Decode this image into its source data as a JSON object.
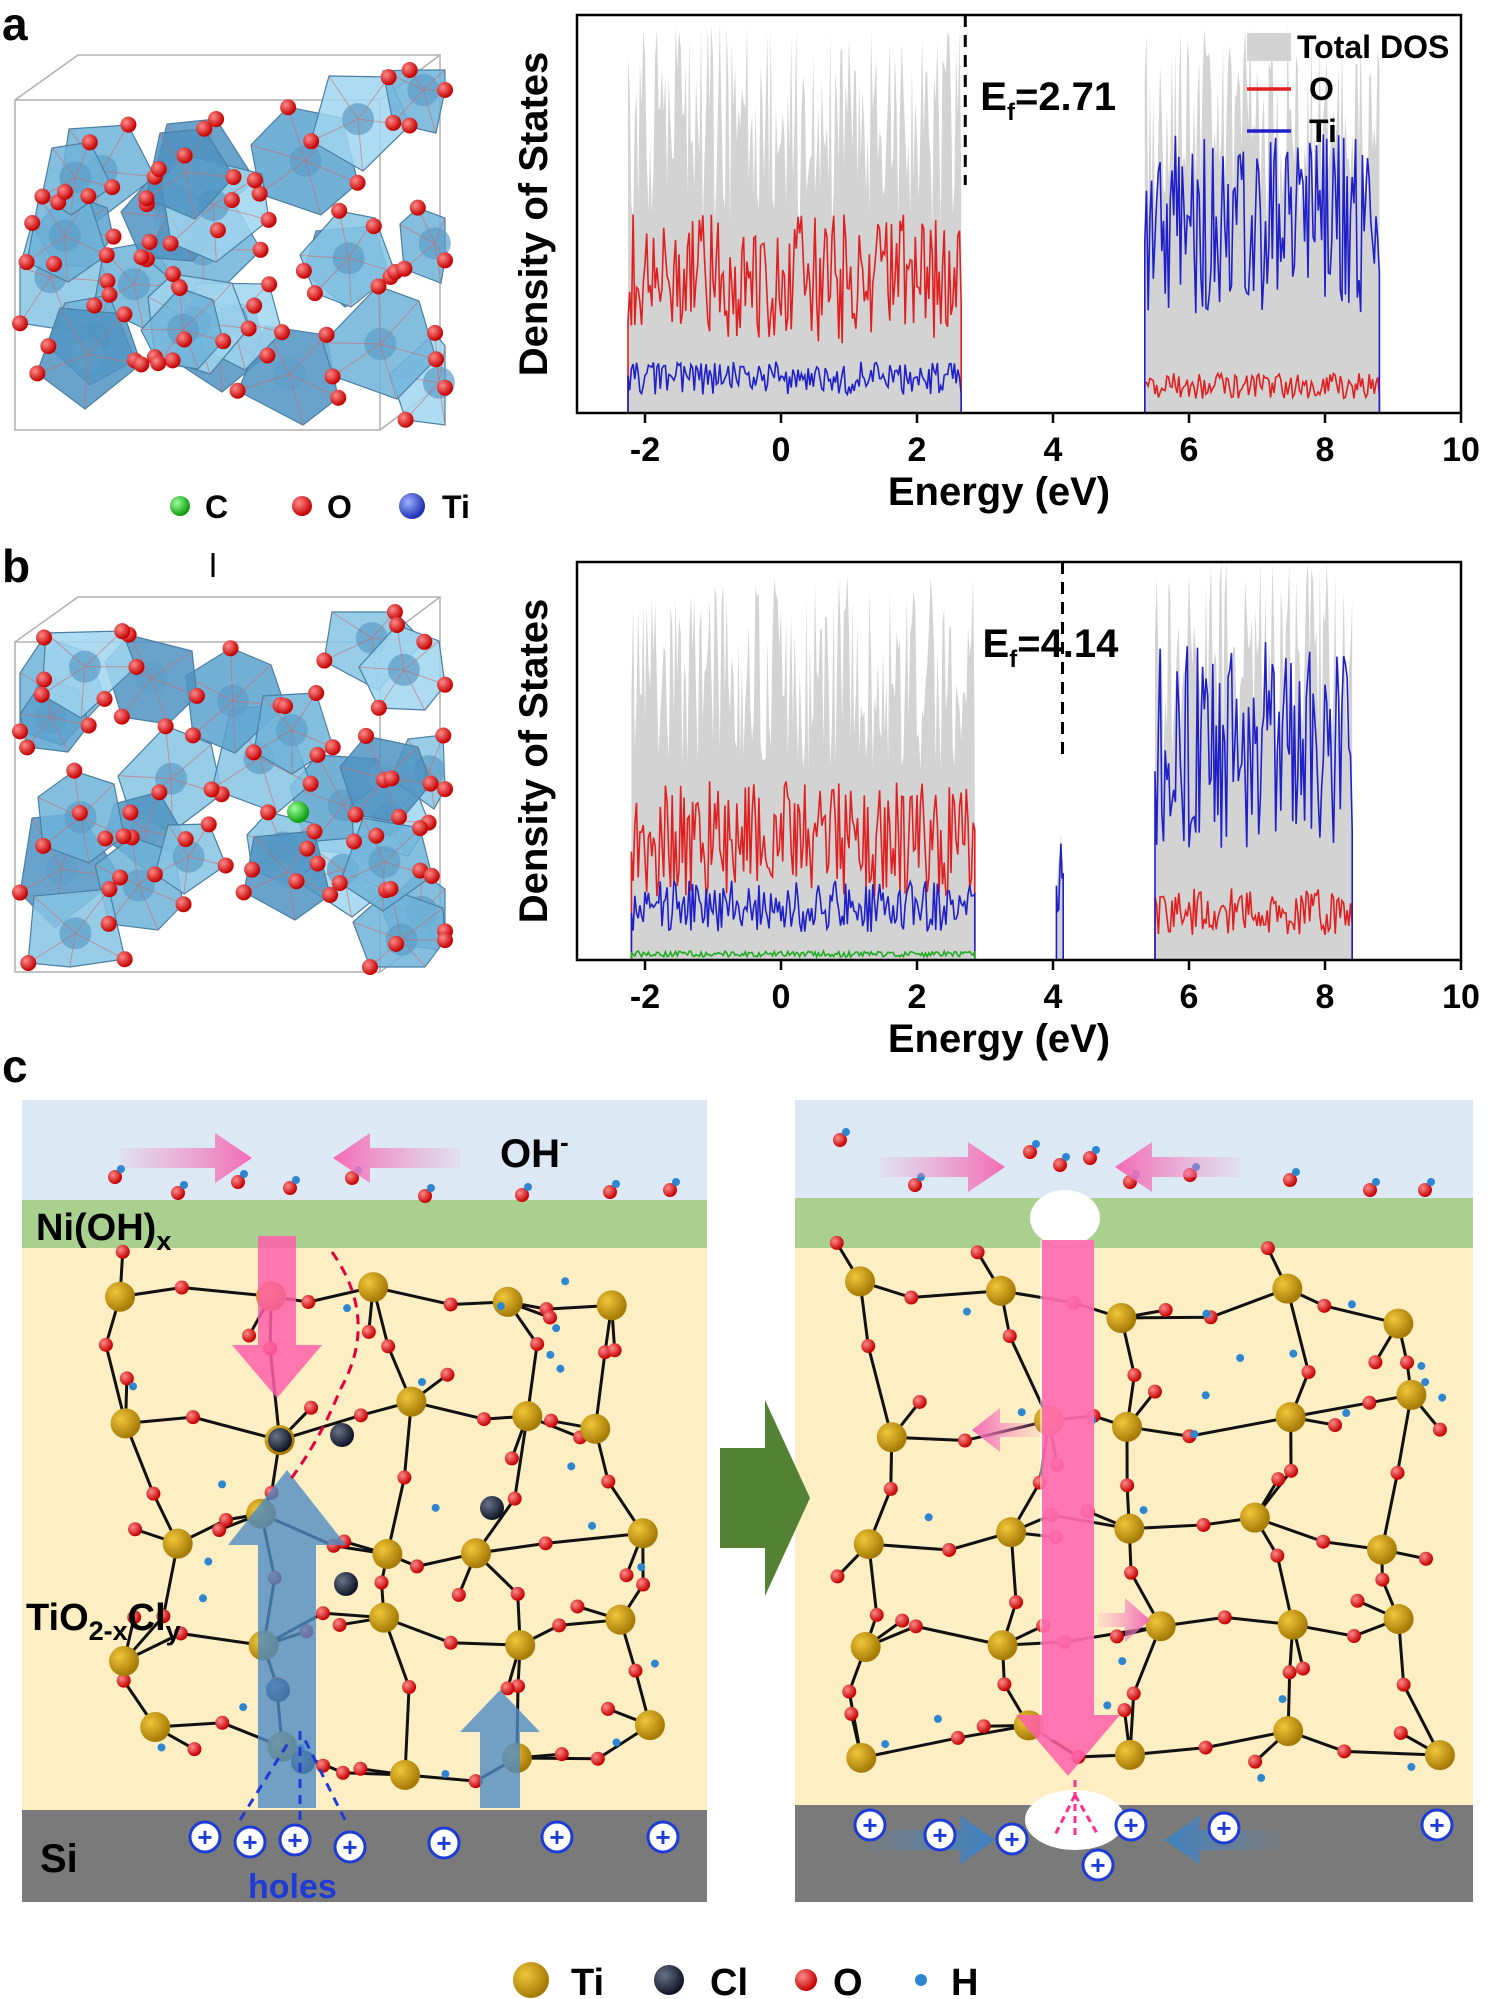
{
  "panel_labels": {
    "a": "a",
    "b": "b",
    "c": "c"
  },
  "structure_legend": {
    "c": "C",
    "o": "O",
    "ti": "Ti"
  },
  "colors": {
    "total_dos": "#d3d3d3",
    "o": "#e02020",
    "ti": "#2020c8",
    "c": "#22aa22",
    "electrolyte": "#dce8f4",
    "nioh": "#a9d08e",
    "tio2": "#fdeec3",
    "si": "#7a7a7a"
  },
  "chart_data": [
    {
      "type": "area",
      "title": "",
      "xlabel": "Energy (eV)",
      "ylabel": "Density of States",
      "xlim": [
        -3,
        10
      ],
      "xticks": [
        "-2",
        "0",
        "2",
        "4",
        "6",
        "8",
        "10"
      ],
      "fermi_label": "E",
      "fermi_sub": "f",
      "fermi_value": "=2.71",
      "fermi_energy": 2.71,
      "legend": [
        "Total DOS",
        "O",
        "Ti"
      ],
      "series": [
        {
          "name": "Total DOS",
          "bands": [
            [
              -2.25,
              2.65,
              0.85
            ],
            [
              5.35,
              8.8,
              0.85
            ]
          ]
        },
        {
          "name": "O",
          "bands": [
            [
              -2.25,
              2.65,
              0.5
            ],
            [
              5.35,
              8.8,
              0.1
            ]
          ]
        },
        {
          "name": "Ti",
          "bands": [
            [
              -2.25,
              2.65,
              0.13
            ],
            [
              5.35,
              8.8,
              0.7
            ]
          ]
        }
      ]
    },
    {
      "type": "area",
      "title": "",
      "xlabel": "Energy (eV)",
      "ylabel": "Density of States",
      "xlim": [
        -3,
        10
      ],
      "xticks": [
        "-2",
        "0",
        "2",
        "4",
        "6",
        "8",
        "10"
      ],
      "fermi_label": "E",
      "fermi_sub": "f",
      "fermi_value": "=4.14",
      "fermi_energy": 4.14,
      "legend": [],
      "series": [
        {
          "name": "Total DOS",
          "bands": [
            [
              -2.2,
              2.85,
              0.85
            ],
            [
              4.05,
              4.15,
              0.3
            ],
            [
              5.5,
              8.4,
              0.9
            ]
          ]
        },
        {
          "name": "O",
          "bands": [
            [
              -2.2,
              2.85,
              0.45
            ],
            [
              5.5,
              8.4,
              0.18
            ]
          ]
        },
        {
          "name": "Ti",
          "bands": [
            [
              -2.2,
              2.85,
              0.2
            ],
            [
              4.05,
              4.15,
              0.3
            ],
            [
              5.5,
              8.4,
              0.8
            ]
          ]
        },
        {
          "name": "C",
          "bands": [
            [
              -2.2,
              2.85,
              0.015
            ]
          ]
        }
      ]
    }
  ],
  "schematic": {
    "oh": "OH",
    "oh_sup": "-",
    "nioh": "Ni(OH)",
    "nioh_sub": "x",
    "tio2_a": "TiO",
    "tio2_sub1": "2-x",
    "tio2_b": "Cl",
    "tio2_sub2": "y",
    "si": "Si",
    "holes": "holes",
    "plus": "+",
    "legend": [
      "Ti",
      "Cl",
      "O",
      "H"
    ]
  }
}
